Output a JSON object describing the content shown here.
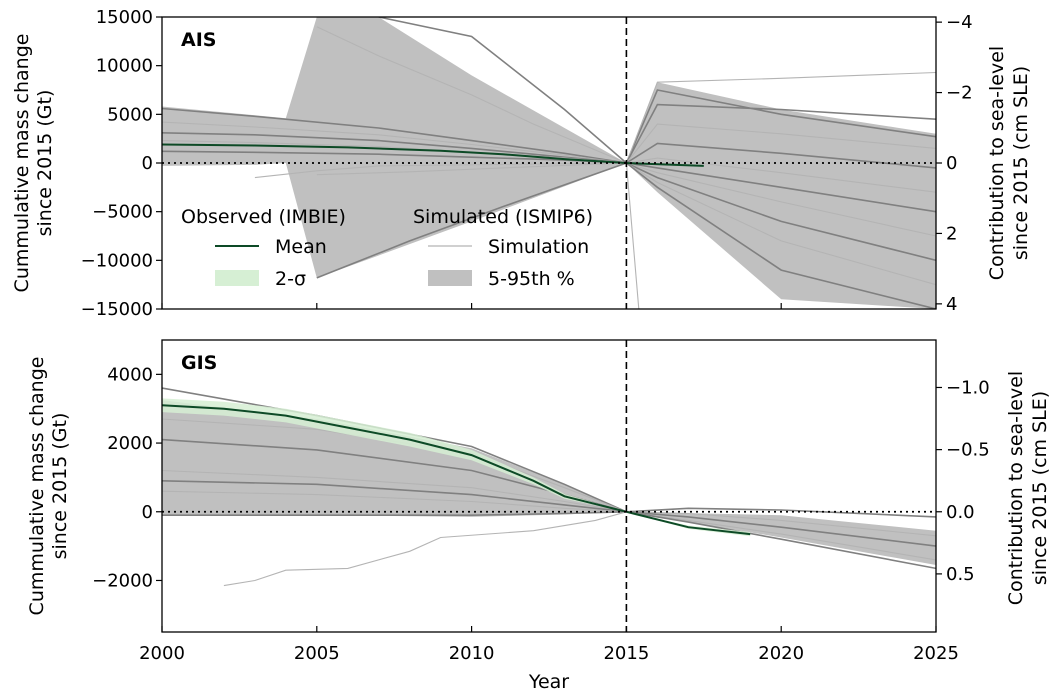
{
  "figure": {
    "xlabel": "Year",
    "xticks": [
      "2000",
      "2005",
      "2010",
      "2015",
      "2020",
      "2025"
    ],
    "xlim": [
      2000,
      2025
    ],
    "reference_year": 2015,
    "legend": {
      "observed_title": "Observed (IMBIE)",
      "observed_mean": "Mean",
      "observed_band": "2-σ",
      "simulated_title": "Simulated (ISMIP6)",
      "simulated_line": "Simulation",
      "simulated_band": "5-95th %"
    },
    "colors": {
      "mean": "#0d4a26",
      "two_sigma": "#d6efd4",
      "band": "#c0c0c0",
      "simulation_dark": "#808080",
      "simulation_light": "#b4b4b4"
    }
  },
  "chart_data": [
    {
      "type": "line",
      "panel": "AIS",
      "ylabel_line1": "Cummulative mass change",
      "ylabel_line2": "since 2015 (Gt)",
      "y2label_line1": "Contribution to sea-level",
      "y2label_line2": "since 2015 (cm SLE)",
      "ylim": [
        -15000,
        15000
      ],
      "yticks": [
        "15000",
        "10000",
        "5000",
        "0",
        "−5000",
        "−10000",
        "−15000"
      ],
      "ytick_values": [
        15000,
        10000,
        5000,
        0,
        -5000,
        -10000,
        -15000
      ],
      "y2ticks": [
        "−4",
        "−2",
        "0",
        "2",
        "4"
      ],
      "y2tick_values": [
        -4,
        -2,
        0,
        2,
        4
      ],
      "observed_mean": {
        "x": [
          2000,
          2003,
          2006,
          2009,
          2011,
          2013,
          2015,
          2017.5
        ],
        "y": [
          1900,
          1800,
          1600,
          1250,
          900,
          400,
          0,
          -300
        ]
      },
      "band_5_95": {
        "x": [
          2000,
          2003,
          2004,
          2005,
          2007,
          2010,
          2015,
          2016,
          2020,
          2025
        ],
        "upper": [
          5800,
          4900,
          4600,
          15000,
          15000,
          9000,
          0,
          8300,
          5500,
          3000
        ],
        "lower": [
          -300,
          -200,
          0,
          -11800,
          -9500,
          -6000,
          0,
          -3000,
          -14000,
          -15000
        ]
      },
      "simulations": [
        {
          "x": [
            2000,
            2003,
            2007,
            2010,
            2013,
            2015
          ],
          "y": [
            5600,
            4800,
            3600,
            2300,
            1000,
            0
          ]
        },
        {
          "x": [
            2000,
            2003,
            2007,
            2010,
            2013,
            2015
          ],
          "y": [
            4200,
            3700,
            2900,
            1900,
            800,
            0
          ]
        },
        {
          "x": [
            2000,
            2003,
            2007,
            2010,
            2013,
            2015
          ],
          "y": [
            3100,
            2900,
            2300,
            1500,
            600,
            0
          ]
        },
        {
          "x": [
            2000,
            2003,
            2007,
            2010,
            2013,
            2015
          ],
          "y": [
            2300,
            2100,
            1700,
            1100,
            500,
            0
          ]
        },
        {
          "x": [
            2000,
            2003,
            2007,
            2010,
            2013,
            2015
          ],
          "y": [
            1200,
            1100,
            900,
            600,
            300,
            0
          ]
        },
        {
          "x": [
            2005,
            2007,
            2010,
            2012,
            2015
          ],
          "y": [
            14000,
            11000,
            7000,
            4000,
            0
          ]
        },
        {
          "x": [
            2005,
            2008,
            2011,
            2015
          ],
          "y": [
            -11800,
            -8000,
            -4500,
            0
          ]
        },
        {
          "x": [
            2005,
            2008,
            2011,
            2015
          ],
          "y": [
            -1200,
            -900,
            -500,
            0
          ]
        },
        {
          "x": [
            2007,
            2010,
            2013,
            2015
          ],
          "y": [
            15000,
            13000,
            5500,
            0
          ]
        },
        {
          "x": [
            2003,
            2005,
            2007,
            2015
          ],
          "y": [
            -1500,
            -800,
            -300,
            0
          ]
        },
        {
          "x": [
            2015,
            2016,
            2020,
            2025
          ],
          "y": [
            0,
            7500,
            5000,
            2700
          ]
        },
        {
          "x": [
            2015,
            2016,
            2020,
            2025
          ],
          "y": [
            0,
            8300,
            8700,
            9300
          ]
        },
        {
          "x": [
            2015,
            2016,
            2020,
            2025
          ],
          "y": [
            0,
            6000,
            5500,
            4500
          ]
        },
        {
          "x": [
            2015,
            2016,
            2020,
            2025
          ],
          "y": [
            0,
            4000,
            3000,
            1500
          ]
        },
        {
          "x": [
            2015,
            2016,
            2020,
            2025
          ],
          "y": [
            0,
            2000,
            1000,
            -500
          ]
        },
        {
          "x": [
            2015,
            2016,
            2020,
            2025
          ],
          "y": [
            0,
            500,
            -1000,
            -3000
          ]
        },
        {
          "x": [
            2015,
            2016,
            2020,
            2025
          ],
          "y": [
            0,
            -500,
            -2500,
            -5000
          ]
        },
        {
          "x": [
            2015,
            2016,
            2020,
            2025
          ],
          "y": [
            0,
            -1000,
            -4000,
            -7500
          ]
        },
        {
          "x": [
            2015,
            2016,
            2020,
            2025
          ],
          "y": [
            0,
            -1500,
            -6000,
            -10000
          ]
        },
        {
          "x": [
            2015,
            2016,
            2020,
            2025
          ],
          "y": [
            0,
            -2000,
            -8000,
            -12500
          ]
        },
        {
          "x": [
            2015,
            2016,
            2020,
            2025
          ],
          "y": [
            0,
            -2500,
            -11000,
            -15000
          ]
        },
        {
          "x": [
            2015,
            2015.4
          ],
          "y": [
            0,
            -15000
          ]
        }
      ]
    },
    {
      "type": "line",
      "panel": "GIS",
      "ylabel_line1": "Cummulative mass change",
      "ylabel_line2": "since 2015 (Gt)",
      "y2label_line1": "Contribution to sea-level",
      "y2label_line2": "since 2015 (cm SLE)",
      "ylim": [
        -3500,
        5000
      ],
      "yticks": [
        "4000",
        "2000",
        "0",
        "−2000"
      ],
      "ytick_values": [
        4000,
        2000,
        0,
        -2000
      ],
      "y2ticks": [
        "−1.0",
        "−0.5",
        "0.0",
        "0.5"
      ],
      "y2tick_values": [
        -1.0,
        -0.5,
        0.0,
        0.5
      ],
      "observed_mean": {
        "x": [
          2000,
          2002,
          2004,
          2006,
          2008,
          2010,
          2012,
          2013,
          2015,
          2017,
          2019
        ],
        "y": [
          3100,
          3000,
          2800,
          2450,
          2100,
          1650,
          900,
          450,
          0,
          -450,
          -650
        ]
      },
      "two_sigma": {
        "x": [
          2000,
          2002,
          2004,
          2006,
          2008,
          2010,
          2012,
          2013,
          2015,
          2017,
          2019
        ],
        "upper": [
          3300,
          3200,
          3000,
          2650,
          2300,
          1800,
          1000,
          520,
          0,
          -400,
          -590
        ],
        "lower": [
          2900,
          2800,
          2600,
          2250,
          1900,
          1500,
          800,
          380,
          0,
          -500,
          -710
        ]
      },
      "band_5_95": {
        "x": [
          2000,
          2005,
          2010,
          2013,
          2015,
          2020,
          2025
        ],
        "upper": [
          3250,
          2700,
          1850,
          800,
          0,
          -100,
          -550
        ],
        "lower": [
          -100,
          -100,
          -150,
          -80,
          0,
          -750,
          -1550
        ]
      },
      "simulations": [
        {
          "x": [
            2000,
            2005,
            2010,
            2013,
            2015
          ],
          "y": [
            3600,
            2800,
            1900,
            800,
            0
          ]
        },
        {
          "x": [
            2000,
            2005,
            2010,
            2013,
            2015
          ],
          "y": [
            2700,
            2400,
            1700,
            700,
            0
          ]
        },
        {
          "x": [
            2000,
            2005,
            2010,
            2013,
            2015
          ],
          "y": [
            2100,
            1800,
            1200,
            500,
            0
          ]
        },
        {
          "x": [
            2000,
            2005,
            2010,
            2013,
            2015
          ],
          "y": [
            1200,
            1000,
            700,
            300,
            0
          ]
        },
        {
          "x": [
            2000,
            2005,
            2010,
            2013,
            2015
          ],
          "y": [
            900,
            800,
            500,
            200,
            0
          ]
        },
        {
          "x": [
            2000,
            2005,
            2010,
            2013,
            2015
          ],
          "y": [
            600,
            500,
            300,
            100,
            0
          ]
        },
        {
          "x": [
            2000,
            2005,
            2010,
            2013,
            2015
          ],
          "y": [
            -100,
            -100,
            -100,
            -50,
            0
          ]
        },
        {
          "x": [
            2002,
            2003,
            2004,
            2006,
            2008,
            2009,
            2012,
            2014,
            2015
          ],
          "y": [
            -2150,
            -2000,
            -1700,
            -1650,
            -1150,
            -750,
            -550,
            -250,
            0
          ]
        },
        {
          "x": [
            2015,
            2017,
            2020,
            2025
          ],
          "y": [
            0,
            100,
            50,
            -150
          ]
        },
        {
          "x": [
            2015,
            2017,
            2020,
            2025
          ],
          "y": [
            0,
            -50,
            -250,
            -700
          ]
        },
        {
          "x": [
            2015,
            2017,
            2020,
            2025
          ],
          "y": [
            0,
            -150,
            -450,
            -1000
          ]
        },
        {
          "x": [
            2015,
            2017,
            2020,
            2025
          ],
          "y": [
            0,
            -250,
            -650,
            -1400
          ]
        },
        {
          "x": [
            2015,
            2017,
            2020,
            2025
          ],
          "y": [
            0,
            -300,
            -800,
            -1650
          ]
        }
      ]
    }
  ]
}
